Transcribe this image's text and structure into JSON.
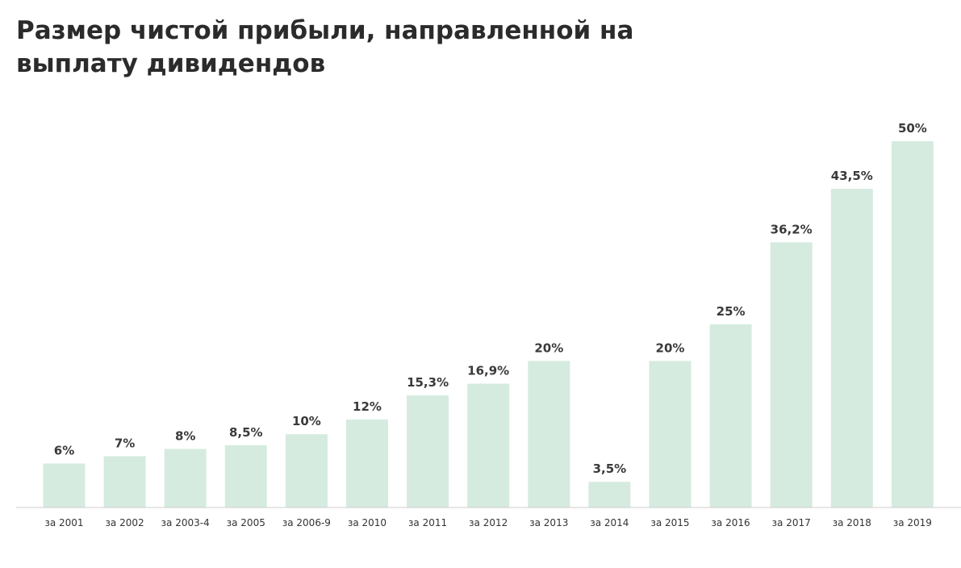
{
  "title": "Размер чистой прибыли, направленной на выплату дивидендов",
  "chart_data": {
    "type": "bar",
    "title": "Размер чистой прибыли, направленной на выплату дивидендов",
    "categories": [
      "за 2001",
      "за 2002",
      "за 2003-4",
      "за 2005",
      "за 2006-9",
      "за 2010",
      "за 2011",
      "за 2012",
      "за 2013",
      "за 2014",
      "за 2015",
      "за 2016",
      "за 2017",
      "за 2018",
      "за 2019"
    ],
    "values": [
      6,
      7,
      8,
      8.5,
      10,
      12,
      15.3,
      16.9,
      20,
      3.5,
      20,
      25,
      36.2,
      43.5,
      50
    ],
    "value_labels": [
      "6%",
      "7%",
      "8%",
      "8,5%",
      "10%",
      "12%",
      "15,3%",
      "16,9%",
      "20%",
      "3,5%",
      "20%",
      "25%",
      "36,2%",
      "43,5%",
      "50%"
    ],
    "xlabel": "",
    "ylabel": "",
    "ylim": [
      0,
      50
    ],
    "grid": false,
    "bar_color": "#d5ebdf",
    "baseline_color": "#cfcfcf"
  }
}
